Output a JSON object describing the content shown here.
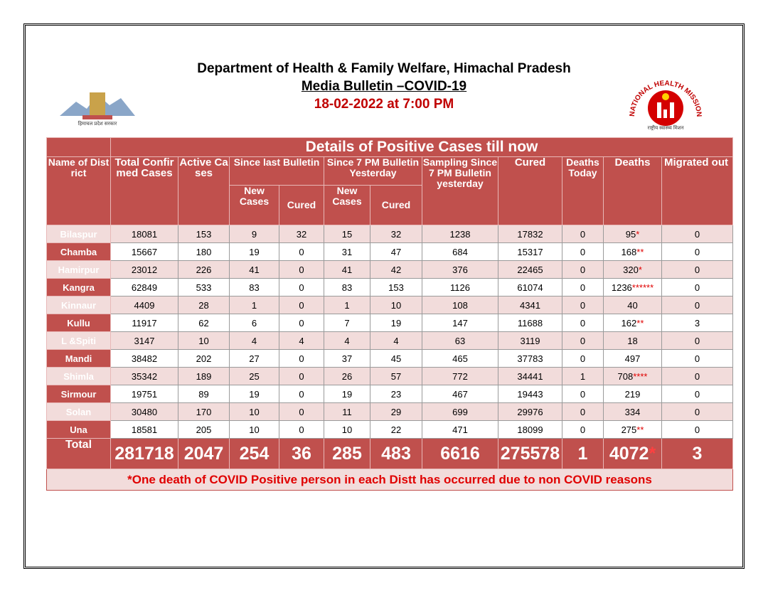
{
  "header": {
    "title": "Department of Health & Family Welfare, Himachal Pradesh",
    "subtitle": "Media Bulletin –COVID-19",
    "date": "18-02-2022 at 7:00 PM"
  },
  "logos": {
    "left_text": "हिमाचल प्रदेश सरकार",
    "right_text": "NATIONAL HEALTH MISSION",
    "right_hindi": "राष्ट्रीय स्वास्थ्य मिशन"
  },
  "table": {
    "banner": "Details of Positive Cases till now",
    "headers": {
      "district": "Name of District",
      "total": "Total Confirmed Cases",
      "active": "Active Cases",
      "since_last": "Since last Bulletin",
      "since_7pm": "Since 7 PM Bulletin Yesterday",
      "sampling": "Sampling Since 7 PM Bulletin yesterday",
      "cured": "Cured",
      "deaths_today": "Deaths Today",
      "deaths": "Deaths",
      "migrated": "Migrated out",
      "new_cases_1": "New Cases",
      "cured_1": "Cured",
      "new_cases_2": "New Cases",
      "cured_2": "Cured"
    },
    "rows": [
      [
        "Bilaspur",
        18081,
        153,
        9,
        32,
        15,
        32,
        1238,
        17832,
        0,
        {
          "value": 95,
          "stars": "*"
        },
        0
      ],
      [
        "Chamba",
        15667,
        180,
        19,
        0,
        31,
        47,
        684,
        15317,
        0,
        {
          "value": 168,
          "stars": "**"
        },
        0
      ],
      [
        "Hamirpur",
        23012,
        226,
        41,
        0,
        41,
        42,
        376,
        22465,
        0,
        {
          "value": 320,
          "stars": "*"
        },
        0
      ],
      [
        "Kangra",
        62849,
        533,
        83,
        0,
        83,
        153,
        1126,
        61074,
        0,
        {
          "value": 1236,
          "stars": "******"
        },
        0
      ],
      [
        "Kinnaur",
        4409,
        28,
        1,
        0,
        1,
        10,
        108,
        4341,
        0,
        40,
        0
      ],
      [
        "Kullu",
        11917,
        62,
        6,
        0,
        7,
        19,
        147,
        11688,
        0,
        {
          "value": 162,
          "stars": "**"
        },
        3
      ],
      [
        "L &Spiti",
        3147,
        10,
        4,
        4,
        4,
        4,
        63,
        3119,
        0,
        18,
        0
      ],
      [
        "Mandi",
        38482,
        202,
        27,
        0,
        37,
        45,
        465,
        37783,
        0,
        497,
        0
      ],
      [
        "Shimla",
        35342,
        189,
        25,
        0,
        26,
        57,
        772,
        34441,
        1,
        {
          "value": 708,
          "stars": "****"
        },
        0
      ],
      [
        "Sirmour",
        19751,
        89,
        19,
        0,
        19,
        23,
        467,
        19443,
        0,
        219,
        0
      ],
      [
        "Solan",
        30480,
        170,
        10,
        0,
        11,
        29,
        699,
        29976,
        0,
        334,
        0
      ],
      [
        "Una",
        18581,
        205,
        10,
        0,
        10,
        22,
        471,
        18099,
        0,
        {
          "value": 275,
          "stars": "**"
        },
        0
      ]
    ],
    "total": [
      "Total",
      281718,
      2047,
      254,
      36,
      285,
      483,
      6616,
      275578,
      1,
      {
        "value": 4072,
        "stars": "*"
      },
      3
    ],
    "footnote": "*One death of COVID Positive person in each Distt has occurred due to non COVID reasons"
  }
}
